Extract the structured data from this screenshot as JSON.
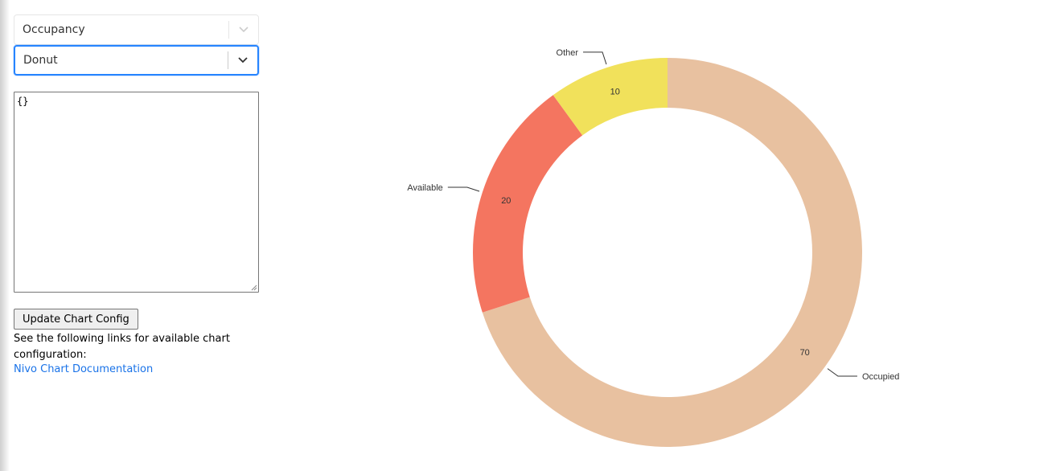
{
  "controls": {
    "metric_select": {
      "value": "Occupancy",
      "icon": "chevron-down-icon"
    },
    "chart_type_select": {
      "value": "Donut",
      "icon": "chevron-down-icon"
    },
    "config_textarea": {
      "value": "{}"
    },
    "update_button_label": "Update Chart Config",
    "help_text": "See the following links for available chart configuration:",
    "doc_link": "Nivo Chart Documentation"
  },
  "chart_data": {
    "type": "pie",
    "variant": "donut",
    "labels": [
      "Occupied",
      "Available",
      "Other"
    ],
    "values": [
      70,
      20,
      10
    ],
    "colors": [
      "#e8c1a0",
      "#f47560",
      "#f1e15b"
    ],
    "legend": "none"
  }
}
